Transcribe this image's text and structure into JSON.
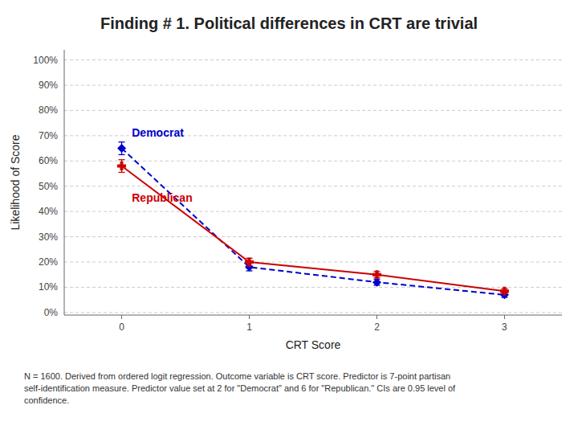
{
  "chart_data": {
    "type": "line",
    "title": "Finding # 1. Political differences in CRT are trivial",
    "x_label": "CRT  Score",
    "y_label": "Likelihood of Score",
    "x": [
      0,
      1,
      2,
      3
    ],
    "series": [
      {
        "name": "Democrat",
        "color": "#0000CC",
        "line_style": "dashed",
        "marker": "diamond",
        "values": [
          0.65,
          0.18,
          0.12,
          0.07
        ],
        "errors": [
          0.025,
          0.015,
          0.012,
          0.01
        ]
      },
      {
        "name": "Republican",
        "color": "#CC0000",
        "line_style": "solid",
        "marker": "plus",
        "values": [
          0.58,
          0.2,
          0.15,
          0.085
        ],
        "errors": [
          0.025,
          0.015,
          0.012,
          0.01
        ]
      }
    ],
    "xlim": [
      -0.45,
      3.45
    ],
    "xticks": [
      0,
      1,
      2,
      3
    ],
    "ylim": [
      -0.01,
      1.04
    ],
    "yticks": [
      {
        "value": 0.0,
        "label": "0%"
      },
      {
        "value": 0.1,
        "label": "10%"
      },
      {
        "value": 0.2,
        "label": "20%"
      },
      {
        "value": 0.3,
        "label": "30%"
      },
      {
        "value": 0.4,
        "label": "40%"
      },
      {
        "value": 0.5,
        "label": "50%"
      },
      {
        "value": 0.6,
        "label": "60%"
      },
      {
        "value": 0.7,
        "label": "70%"
      },
      {
        "value": 0.8,
        "label": "80%"
      },
      {
        "value": 0.9,
        "label": "90%"
      },
      {
        "value": 1.0,
        "label": "100%"
      }
    ],
    "grid": true,
    "annotations": [
      {
        "text": "Democrat",
        "x": 0.08,
        "y": 0.695,
        "color": "#0000CC"
      },
      {
        "text": "Republican",
        "x": 0.08,
        "y": 0.44,
        "color": "#CC0000"
      }
    ],
    "footnote": "N = 1600. Derived from ordered logit regression. Outcome variable is CRT score. Predictor is 7-point partisan\nself-identification measure. Predictor value set at 2 for \"Democrat\" and 6 for \"Republican.\" CIs are 0.95 level of\nconfidence."
  }
}
